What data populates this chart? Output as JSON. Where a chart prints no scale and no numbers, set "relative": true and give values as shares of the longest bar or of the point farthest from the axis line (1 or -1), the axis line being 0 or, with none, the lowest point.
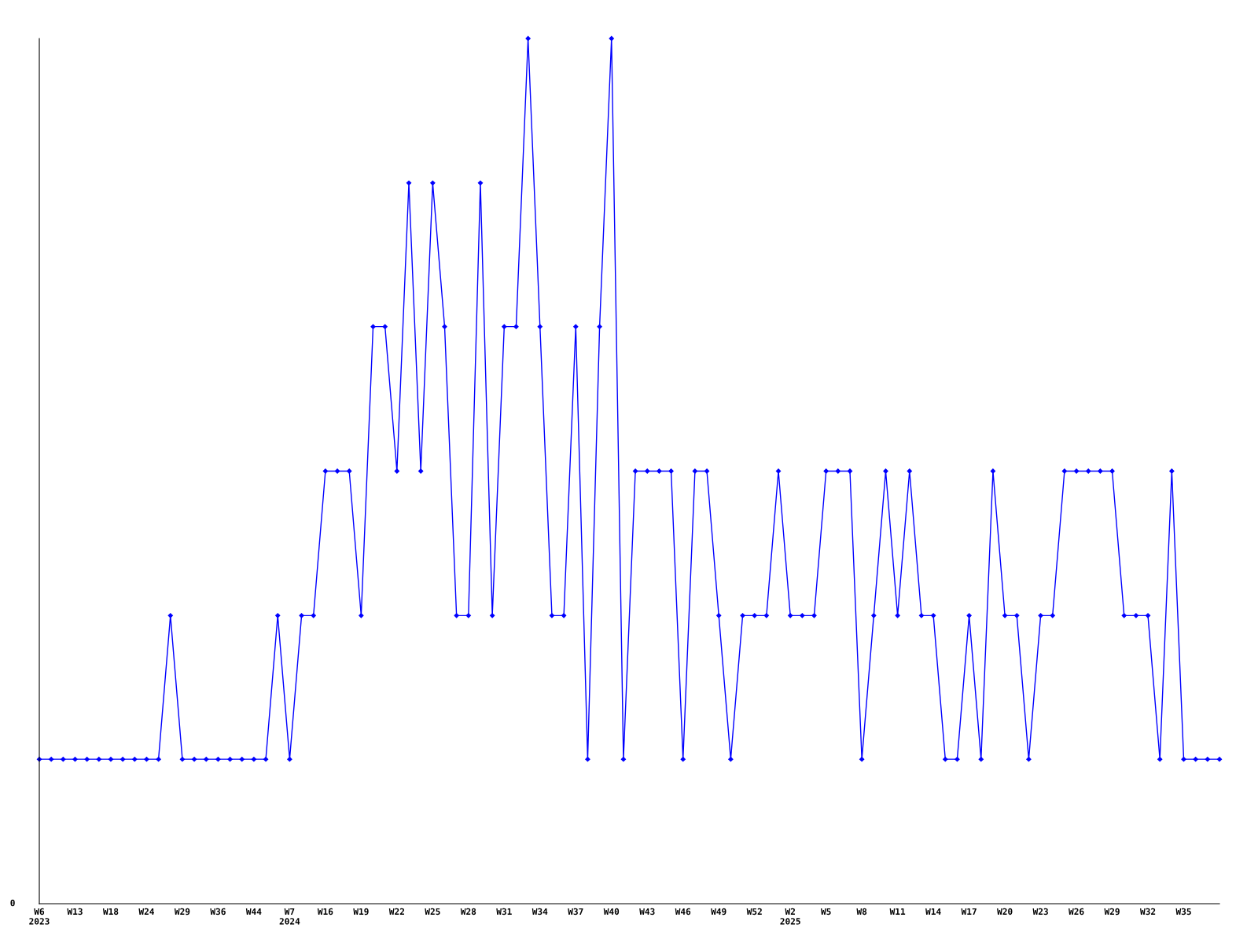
{
  "chart_data": {
    "type": "line",
    "relative": true,
    "marker": "diamond",
    "line_style": "solid",
    "grid": false,
    "annotations": [
      "0"
    ],
    "categories": [
      "W6\n2023",
      null,
      null,
      "W13",
      null,
      null,
      "W18",
      null,
      null,
      "W24",
      null,
      null,
      "W29",
      null,
      null,
      "W36",
      null,
      null,
      "W44",
      null,
      null,
      "W7\n2024",
      null,
      null,
      "W16",
      null,
      null,
      "W19",
      null,
      null,
      "W22",
      null,
      null,
      "W25",
      null,
      null,
      "W28",
      null,
      null,
      "W31",
      null,
      null,
      "W34",
      null,
      null,
      "W37",
      null,
      null,
      "W40",
      null,
      null,
      "W43",
      null,
      null,
      "W46",
      null,
      null,
      "W49",
      null,
      null,
      "W52",
      null,
      null,
      "W2\n2025",
      null,
      null,
      "W5",
      null,
      null,
      "W8",
      null,
      null,
      "W11",
      null,
      null,
      "W14",
      null,
      null,
      "W17",
      null,
      null,
      "W20",
      null,
      null,
      "W23",
      null,
      null,
      "W26",
      null,
      null,
      "W29",
      null,
      null,
      "W32",
      null,
      null,
      "W35",
      null,
      null,
      null
    ],
    "series": [
      {
        "color": "#0000ff",
        "values": [
          0.167,
          0.167,
          0.167,
          0.167,
          0.167,
          0.167,
          0.167,
          0.167,
          0.167,
          0.167,
          0.167,
          0.333,
          0.167,
          0.167,
          0.167,
          0.167,
          0.167,
          0.167,
          0.167,
          0.167,
          0.333,
          0.167,
          0.333,
          0.333,
          0.5,
          0.5,
          0.5,
          0.333,
          0.667,
          0.667,
          0.5,
          0.833,
          0.5,
          0.833,
          0.667,
          0.333,
          0.333,
          0.833,
          0.333,
          0.667,
          0.667,
          1,
          0.667,
          0.333,
          0.333,
          0.667,
          0.167,
          0.667,
          1,
          0.167,
          0.5,
          0.5,
          0.5,
          0.5,
          0.167,
          0.5,
          0.5,
          0.333,
          0.167,
          0.333,
          0.333,
          0.333,
          0.5,
          0.333,
          0.333,
          0.333,
          0.5,
          0.5,
          0.5,
          0.167,
          0.333,
          0.5,
          0.333,
          0.5,
          0.333,
          0.333,
          0.167,
          0.167,
          0.333,
          0.167,
          0.5,
          0.333,
          0.333,
          0.167,
          0.333,
          0.333,
          0.5,
          0.5,
          0.5,
          0.5,
          0.5,
          0.333,
          0.333,
          0.333,
          0.167,
          0.5,
          0.167,
          0.167,
          0.167,
          0.167
        ]
      }
    ]
  }
}
